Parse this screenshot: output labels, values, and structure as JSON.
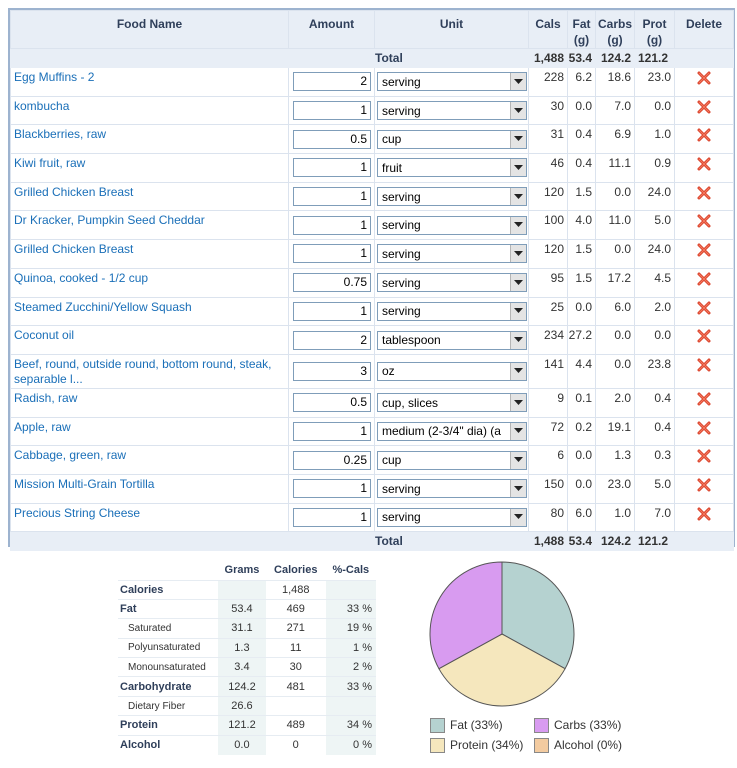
{
  "columns": {
    "food": "Food Name",
    "amount": "Amount",
    "unit": "Unit",
    "cals": "Cals",
    "fat_l1": "Fat",
    "fat_l2": "(g)",
    "carbs_l1": "Carbs",
    "carbs_l2": "(g)",
    "prot_l1": "Prot",
    "prot_l2": "(g)",
    "delete": "Delete"
  },
  "total": {
    "label": "Total",
    "cals": "1,488",
    "fat": "53.4",
    "carbs": "124.2",
    "prot": "121.2"
  },
  "items": [
    {
      "name": "Egg Muffins - 2",
      "amount": "2",
      "unit": "serving",
      "cals": "228",
      "fat": "6.2",
      "carbs": "18.6",
      "prot": "23.0"
    },
    {
      "name": "kombucha",
      "amount": "1",
      "unit": "serving",
      "cals": "30",
      "fat": "0.0",
      "carbs": "7.0",
      "prot": "0.0"
    },
    {
      "name": "Blackberries, raw",
      "amount": "0.5",
      "unit": "cup",
      "cals": "31",
      "fat": "0.4",
      "carbs": "6.9",
      "prot": "1.0"
    },
    {
      "name": "Kiwi fruit, raw",
      "amount": "1",
      "unit": "fruit",
      "cals": "46",
      "fat": "0.4",
      "carbs": "11.1",
      "prot": "0.9"
    },
    {
      "name": "Grilled Chicken Breast",
      "amount": "1",
      "unit": "serving",
      "cals": "120",
      "fat": "1.5",
      "carbs": "0.0",
      "prot": "24.0"
    },
    {
      "name": "Dr Kracker, Pumpkin Seed Cheddar",
      "amount": "1",
      "unit": "serving",
      "cals": "100",
      "fat": "4.0",
      "carbs": "11.0",
      "prot": "5.0"
    },
    {
      "name": "Grilled Chicken Breast",
      "amount": "1",
      "unit": "serving",
      "cals": "120",
      "fat": "1.5",
      "carbs": "0.0",
      "prot": "24.0"
    },
    {
      "name": "Quinoa, cooked - 1/2 cup",
      "amount": "0.75",
      "unit": "serving",
      "cals": "95",
      "fat": "1.5",
      "carbs": "17.2",
      "prot": "4.5"
    },
    {
      "name": "Steamed Zucchini/Yellow Squash",
      "amount": "1",
      "unit": "serving",
      "cals": "25",
      "fat": "0.0",
      "carbs": "6.0",
      "prot": "2.0"
    },
    {
      "name": "Coconut oil",
      "amount": "2",
      "unit": "tablespoon",
      "cals": "234",
      "fat": "27.2",
      "carbs": "0.0",
      "prot": "0.0"
    },
    {
      "name": "Beef, round, outside round, bottom round, steak, separable l...",
      "amount": "3",
      "unit": "oz",
      "cals": "141",
      "fat": "4.4",
      "carbs": "0.0",
      "prot": "23.8"
    },
    {
      "name": "Radish, raw",
      "amount": "0.5",
      "unit": "cup, slices",
      "cals": "9",
      "fat": "0.1",
      "carbs": "2.0",
      "prot": "0.4"
    },
    {
      "name": "Apple, raw",
      "amount": "1",
      "unit": "medium (2-3/4\" dia) (a",
      "cals": "72",
      "fat": "0.2",
      "carbs": "19.1",
      "prot": "0.4"
    },
    {
      "name": "Cabbage, green, raw",
      "amount": "0.25",
      "unit": "cup",
      "cals": "6",
      "fat": "0.0",
      "carbs": "1.3",
      "prot": "0.3"
    },
    {
      "name": "Mission Multi-Grain Tortilla",
      "amount": "1",
      "unit": "serving",
      "cals": "150",
      "fat": "0.0",
      "carbs": "23.0",
      "prot": "5.0"
    },
    {
      "name": "Precious String Cheese",
      "amount": "1",
      "unit": "serving",
      "cals": "80",
      "fat": "6.0",
      "carbs": "1.0",
      "prot": "7.0"
    }
  ],
  "summary": {
    "headers": {
      "grams": "Grams",
      "calories": "Calories",
      "pct": "%-Cals"
    },
    "rows": [
      {
        "label": "Calories",
        "sub": false,
        "grams": "",
        "calories": "1,488",
        "pct": ""
      },
      {
        "label": "Fat",
        "sub": false,
        "grams": "53.4",
        "calories": "469",
        "pct": "33 %"
      },
      {
        "label": "Saturated",
        "sub": true,
        "grams": "31.1",
        "calories": "271",
        "pct": "19 %"
      },
      {
        "label": "Polyunsaturated",
        "sub": true,
        "grams": "1.3",
        "calories": "11",
        "pct": "1 %"
      },
      {
        "label": "Monounsaturated",
        "sub": true,
        "grams": "3.4",
        "calories": "30",
        "pct": "2 %"
      },
      {
        "label": "Carbohydrate",
        "sub": false,
        "grams": "124.2",
        "calories": "481",
        "pct": "33 %"
      },
      {
        "label": "Dietary Fiber",
        "sub": true,
        "grams": "26.6",
        "calories": "",
        "pct": ""
      },
      {
        "label": "Protein",
        "sub": false,
        "grams": "121.2",
        "calories": "489",
        "pct": "34 %"
      },
      {
        "label": "Alcohol",
        "sub": false,
        "grams": "0.0",
        "calories": "0",
        "pct": "0 %"
      }
    ]
  },
  "chart_data": {
    "type": "pie",
    "categories": [
      "Fat",
      "Carbs",
      "Protein",
      "Alcohol"
    ],
    "values": [
      33,
      33,
      34,
      0
    ],
    "colors": [
      "#b5d2d0",
      "#d89bf0",
      "#f5e7bd",
      "#f3cba0"
    ],
    "legend": [
      "Fat  (33%)",
      "Carbs  (33%)",
      "Protein  (34%)",
      "Alcohol  (0%)"
    ],
    "legend_position": "bottom"
  }
}
